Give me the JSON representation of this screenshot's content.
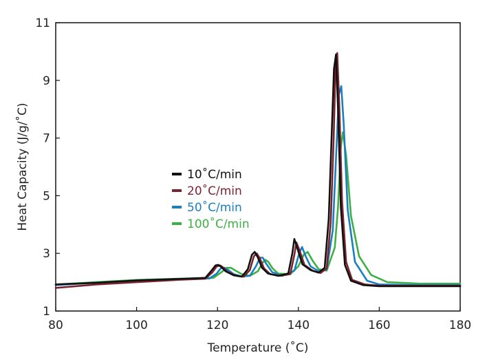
{
  "chart_data": {
    "type": "line",
    "title": "",
    "xlabel": "Temperature (˚C)",
    "ylabel": "Heat Capacity (J/g/˚C)",
    "xlim": [
      80,
      180
    ],
    "ylim": [
      1,
      11
    ],
    "xticks": [
      80,
      100,
      120,
      140,
      160,
      180
    ],
    "yticks": [
      1,
      3,
      5,
      7,
      9,
      11
    ],
    "grid": false,
    "legend_position": "center-left",
    "series": [
      {
        "name": "10˚C/min",
        "color": "#111111",
        "x": [
          80,
          90,
          100,
          110,
          117,
          118.5,
          119.5,
          120.2,
          121,
          122,
          124,
          126,
          127.5,
          128.5,
          129.2,
          130,
          131,
          132.5,
          135,
          137.5,
          138.5,
          139,
          139.8,
          141,
          143,
          145,
          146.5,
          147.5,
          148.2,
          148.8,
          149.3,
          149.8,
          150.5,
          151.5,
          153,
          156,
          160,
          170,
          180
        ],
        "y": [
          1.92,
          1.98,
          2.06,
          2.11,
          2.15,
          2.4,
          2.58,
          2.6,
          2.52,
          2.38,
          2.24,
          2.19,
          2.45,
          2.95,
          3.05,
          2.85,
          2.5,
          2.3,
          2.22,
          2.3,
          3.0,
          3.5,
          3.15,
          2.62,
          2.42,
          2.33,
          2.5,
          4.2,
          7.0,
          9.4,
          9.9,
          8.0,
          4.6,
          2.6,
          2.05,
          1.9,
          1.86,
          1.86,
          1.86
        ]
      },
      {
        "name": "20˚C/min",
        "color": "#7a2430",
        "x": [
          80,
          90,
          100,
          110,
          117,
          118.8,
          119.8,
          120.7,
          121.5,
          122.5,
          124.5,
          126.5,
          128,
          129,
          129.7,
          130.5,
          131.5,
          133,
          135.5,
          138,
          139,
          139.5,
          140.3,
          141.5,
          143.5,
          145.5,
          147,
          148,
          148.7,
          149.2,
          149.6,
          150.1,
          150.8,
          151.8,
          153.3,
          156.5,
          160,
          170,
          180
        ],
        "y": [
          1.8,
          1.92,
          2.0,
          2.08,
          2.12,
          2.35,
          2.55,
          2.58,
          2.5,
          2.36,
          2.23,
          2.19,
          2.42,
          2.9,
          3.0,
          2.82,
          2.48,
          2.28,
          2.22,
          2.28,
          2.95,
          3.38,
          3.1,
          2.6,
          2.4,
          2.32,
          2.48,
          4.1,
          6.9,
          9.5,
          9.95,
          8.2,
          4.8,
          2.7,
          2.08,
          1.92,
          1.88,
          1.88,
          1.88
        ]
      },
      {
        "name": "50˚C/min",
        "color": "#1a7fc1",
        "x": [
          80,
          90,
          100,
          110,
          118,
          119.8,
          120.8,
          121.7,
          122.7,
          124,
          126,
          128,
          129.5,
          130.5,
          131.2,
          132,
          133.5,
          136,
          139,
          140.2,
          140.9,
          141.8,
          143,
          145,
          147,
          148.5,
          149.3,
          150,
          150.6,
          151.2,
          152.2,
          154,
          157,
          160,
          170,
          180
        ],
        "y": [
          1.9,
          1.98,
          2.06,
          2.11,
          2.13,
          2.3,
          2.48,
          2.5,
          2.42,
          2.28,
          2.2,
          2.22,
          2.55,
          2.85,
          2.85,
          2.65,
          2.35,
          2.22,
          2.4,
          3.0,
          3.22,
          2.9,
          2.55,
          2.38,
          2.45,
          3.8,
          6.3,
          8.5,
          8.8,
          7.5,
          4.5,
          2.7,
          2.05,
          1.92,
          1.9,
          1.9
        ]
      },
      {
        "name": "100˚C/min",
        "color": "#3cb043",
        "x": [
          80,
          90,
          100,
          110,
          119,
          121,
          122.3,
          123.3,
          124.5,
          126,
          128,
          130,
          131,
          131.8,
          132.6,
          133.6,
          135,
          138,
          140,
          141.3,
          142.3,
          143.5,
          145,
          147,
          149,
          149.8,
          150.5,
          151,
          151.8,
          153,
          155,
          158,
          162,
          170,
          180
        ],
        "y": [
          1.92,
          2.0,
          2.08,
          2.12,
          2.15,
          2.35,
          2.5,
          2.5,
          2.4,
          2.28,
          2.22,
          2.38,
          2.65,
          2.78,
          2.7,
          2.48,
          2.3,
          2.28,
          2.55,
          2.95,
          3.05,
          2.75,
          2.45,
          2.4,
          3.2,
          4.6,
          6.7,
          7.2,
          6.4,
          4.3,
          2.9,
          2.25,
          2.0,
          1.95,
          1.95
        ]
      }
    ]
  }
}
